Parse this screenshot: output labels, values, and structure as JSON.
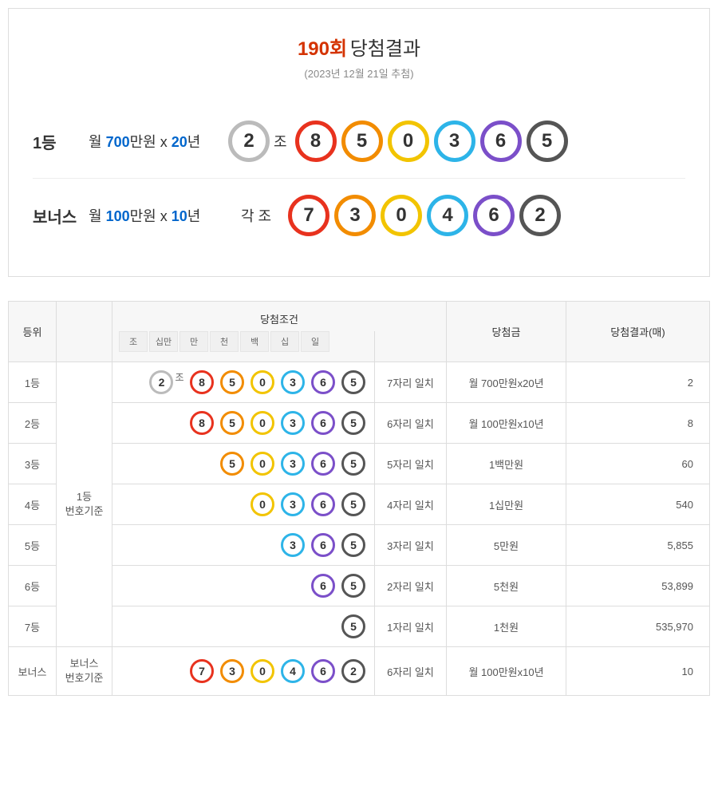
{
  "header": {
    "round": "190회",
    "title": "당첨결과",
    "date": "(2023년 12월 21일 추첨)"
  },
  "ball_colors": {
    "gray": "#bbbbbb",
    "red": "#e8321e",
    "orange": "#f28c00",
    "yellow": "#f2c400",
    "cyan": "#2db4e8",
    "purple": "#7b4fc9",
    "dark": "#555555"
  },
  "ball_border_width_large": 5,
  "ball_border_width_small": 3,
  "main": {
    "first": {
      "rank": "1등",
      "desc_prefix": "월 ",
      "desc_amount": "700",
      "desc_unit": "만원 x ",
      "desc_years": "20",
      "desc_year_unit": "년",
      "group_ball": {
        "num": "2",
        "color": "gray"
      },
      "group_label": "조",
      "balls": [
        {
          "num": "8",
          "color": "red"
        },
        {
          "num": "5",
          "color": "orange"
        },
        {
          "num": "0",
          "color": "yellow"
        },
        {
          "num": "3",
          "color": "cyan"
        },
        {
          "num": "6",
          "color": "purple"
        },
        {
          "num": "5",
          "color": "dark"
        }
      ]
    },
    "bonus": {
      "rank": "보너스",
      "desc_prefix": "월 ",
      "desc_amount": "100",
      "desc_unit": "만원 x ",
      "desc_years": "10",
      "desc_year_unit": "년",
      "group_label": "각 조",
      "balls": [
        {
          "num": "7",
          "color": "red"
        },
        {
          "num": "3",
          "color": "orange"
        },
        {
          "num": "0",
          "color": "yellow"
        },
        {
          "num": "4",
          "color": "cyan"
        },
        {
          "num": "6",
          "color": "purple"
        },
        {
          "num": "2",
          "color": "dark"
        }
      ]
    }
  },
  "table": {
    "headers": {
      "rank": "등위",
      "condition": "당첨조건",
      "prize": "당첨금",
      "result": "당첨결과(매)"
    },
    "digit_headers": [
      "조",
      "십만",
      "만",
      "천",
      "백",
      "십",
      "일"
    ],
    "base_first": "1등\n번호기준",
    "base_bonus": "보너스\n번호기준",
    "group_suffix": "조",
    "rows": [
      {
        "rank": "1등",
        "balls": [
          {
            "num": "2",
            "color": "gray",
            "group": true
          },
          {
            "num": "8",
            "color": "red"
          },
          {
            "num": "5",
            "color": "orange"
          },
          {
            "num": "0",
            "color": "yellow"
          },
          {
            "num": "3",
            "color": "cyan"
          },
          {
            "num": "6",
            "color": "purple"
          },
          {
            "num": "5",
            "color": "dark"
          }
        ],
        "match": "7자리 일치",
        "prize": "월 700만원x20년",
        "count": "2"
      },
      {
        "rank": "2등",
        "balls": [
          null,
          {
            "num": "8",
            "color": "red"
          },
          {
            "num": "5",
            "color": "orange"
          },
          {
            "num": "0",
            "color": "yellow"
          },
          {
            "num": "3",
            "color": "cyan"
          },
          {
            "num": "6",
            "color": "purple"
          },
          {
            "num": "5",
            "color": "dark"
          }
        ],
        "match": "6자리 일치",
        "prize": "월 100만원x10년",
        "count": "8"
      },
      {
        "rank": "3등",
        "balls": [
          null,
          null,
          {
            "num": "5",
            "color": "orange"
          },
          {
            "num": "0",
            "color": "yellow"
          },
          {
            "num": "3",
            "color": "cyan"
          },
          {
            "num": "6",
            "color": "purple"
          },
          {
            "num": "5",
            "color": "dark"
          }
        ],
        "match": "5자리 일치",
        "prize": "1백만원",
        "count": "60"
      },
      {
        "rank": "4등",
        "balls": [
          null,
          null,
          null,
          {
            "num": "0",
            "color": "yellow"
          },
          {
            "num": "3",
            "color": "cyan"
          },
          {
            "num": "6",
            "color": "purple"
          },
          {
            "num": "5",
            "color": "dark"
          }
        ],
        "match": "4자리 일치",
        "prize": "1십만원",
        "count": "540"
      },
      {
        "rank": "5등",
        "balls": [
          null,
          null,
          null,
          null,
          {
            "num": "3",
            "color": "cyan"
          },
          {
            "num": "6",
            "color": "purple"
          },
          {
            "num": "5",
            "color": "dark"
          }
        ],
        "match": "3자리 일치",
        "prize": "5만원",
        "count": "5,855"
      },
      {
        "rank": "6등",
        "balls": [
          null,
          null,
          null,
          null,
          null,
          {
            "num": "6",
            "color": "purple"
          },
          {
            "num": "5",
            "color": "dark"
          }
        ],
        "match": "2자리 일치",
        "prize": "5천원",
        "count": "53,899"
      },
      {
        "rank": "7등",
        "balls": [
          null,
          null,
          null,
          null,
          null,
          null,
          {
            "num": "5",
            "color": "dark"
          }
        ],
        "match": "1자리 일치",
        "prize": "1천원",
        "count": "535,970"
      }
    ],
    "bonus_row": {
      "rank": "보너스",
      "balls": [
        null,
        {
          "num": "7",
          "color": "red"
        },
        {
          "num": "3",
          "color": "orange"
        },
        {
          "num": "0",
          "color": "yellow"
        },
        {
          "num": "4",
          "color": "cyan"
        },
        {
          "num": "6",
          "color": "purple"
        },
        {
          "num": "2",
          "color": "dark"
        }
      ],
      "match": "6자리 일치",
      "prize": "월 100만원x10년",
      "count": "10"
    }
  }
}
